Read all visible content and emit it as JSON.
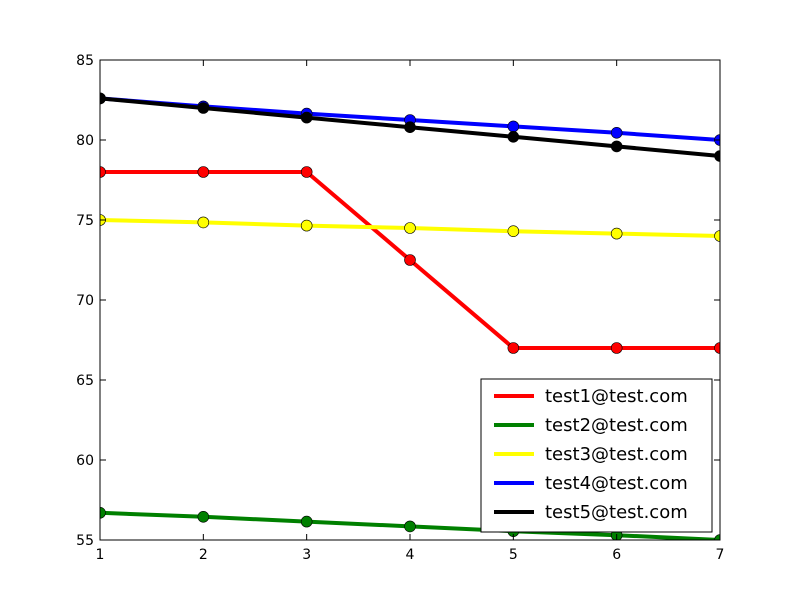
{
  "chart_data": {
    "type": "line",
    "title": "",
    "xlabel": "",
    "ylabel": "",
    "x": [
      1,
      2,
      3,
      4,
      5,
      6,
      7
    ],
    "xlim": [
      1,
      7
    ],
    "ylim": [
      55,
      85
    ],
    "xticks": [
      "1",
      "2",
      "3",
      "4",
      "5",
      "6",
      "7"
    ],
    "yticks": [
      "55",
      "60",
      "65",
      "70",
      "75",
      "80",
      "85"
    ],
    "grid": false,
    "legend_position": "bottom-right",
    "series": [
      {
        "name": "test1@test.com",
        "color": "#ff0000",
        "values": [
          78,
          78,
          78,
          72.5,
          67,
          67,
          67
        ]
      },
      {
        "name": "test2@test.com",
        "color": "#008000",
        "values": [
          56.7,
          56.45,
          56.15,
          55.85,
          55.55,
          55.3,
          55
        ]
      },
      {
        "name": "test3@test.com",
        "color": "#ffff00",
        "values": [
          75,
          74.85,
          74.65,
          74.5,
          74.3,
          74.15,
          74
        ]
      },
      {
        "name": "test4@test.com",
        "color": "#0000ff",
        "values": [
          82.6,
          82.1,
          81.65,
          81.25,
          80.85,
          80.45,
          80
        ]
      },
      {
        "name": "test5@test.com",
        "color": "#000000",
        "values": [
          82.6,
          82,
          81.4,
          80.8,
          80.2,
          79.6,
          79
        ]
      }
    ]
  }
}
